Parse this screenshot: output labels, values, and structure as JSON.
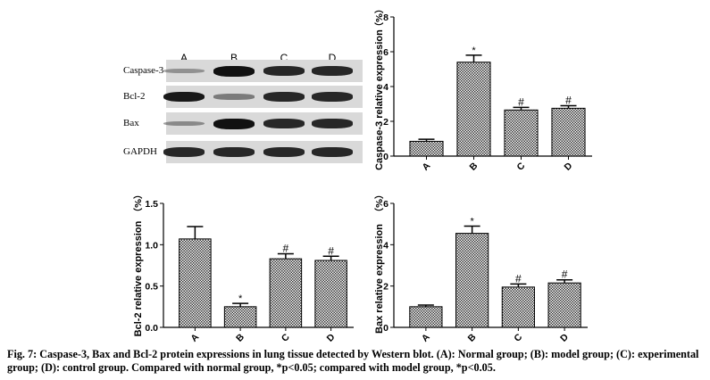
{
  "blot": {
    "lanes": [
      "A",
      "B",
      "C",
      "D"
    ],
    "rows": [
      {
        "label": "Caspase-3",
        "intensity": [
          0.15,
          1.0,
          0.85,
          0.85
        ]
      },
      {
        "label": "Bcl-2",
        "intensity": [
          0.95,
          0.3,
          0.85,
          0.85
        ]
      },
      {
        "label": "Bax",
        "intensity": [
          0.2,
          1.0,
          0.85,
          0.85
        ]
      },
      {
        "label": "GAPDH",
        "intensity": [
          0.85,
          0.85,
          0.85,
          0.85
        ]
      }
    ]
  },
  "chart_data": [
    {
      "type": "bar",
      "categories": [
        "A",
        "B",
        "C",
        "D"
      ],
      "values": [
        0.85,
        5.4,
        2.65,
        2.75
      ],
      "errors": [
        0.12,
        0.4,
        0.15,
        0.15
      ],
      "annotations": [
        "",
        "*",
        "#",
        "#"
      ],
      "ylabel": "Caspase-3 relative expression",
      "yunit": "（%）",
      "ylim": [
        0,
        8
      ],
      "yticks": [
        "0",
        "2",
        "4",
        "6",
        "8"
      ],
      "grid": false
    },
    {
      "type": "bar",
      "categories": [
        "A",
        "B",
        "C",
        "D"
      ],
      "values": [
        1.07,
        0.25,
        0.83,
        0.81
      ],
      "errors": [
        0.15,
        0.04,
        0.06,
        0.05
      ],
      "annotations": [
        "",
        "*",
        "#",
        "#"
      ],
      "ylabel": "Bcl-2 relative expression",
      "yunit": "（%）",
      "ylim": [
        0,
        1.5
      ],
      "yticks": [
        "0.0",
        "0.5",
        "1.0",
        "1.5"
      ],
      "grid": false
    },
    {
      "type": "bar",
      "categories": [
        "A",
        "B",
        "C",
        "D"
      ],
      "values": [
        1.0,
        4.55,
        1.95,
        2.15
      ],
      "errors": [
        0.08,
        0.35,
        0.15,
        0.15
      ],
      "annotations": [
        "",
        "*",
        "#",
        "#"
      ],
      "ylabel": "Bax relative expression",
      "yunit": "（%）",
      "ylim": [
        0,
        6
      ],
      "yticks": [
        "0",
        "2",
        "4",
        "6"
      ],
      "grid": false
    }
  ],
  "caption": "Fig. 7: Caspase-3, Bax and Bcl-2 protein expressions in lung tissue detected by Western blot. (A): Normal group; (B): model group; (C): experimental group; (D): control group. Compared with normal group, *p<0.05; compared with model group, *p<0.05."
}
